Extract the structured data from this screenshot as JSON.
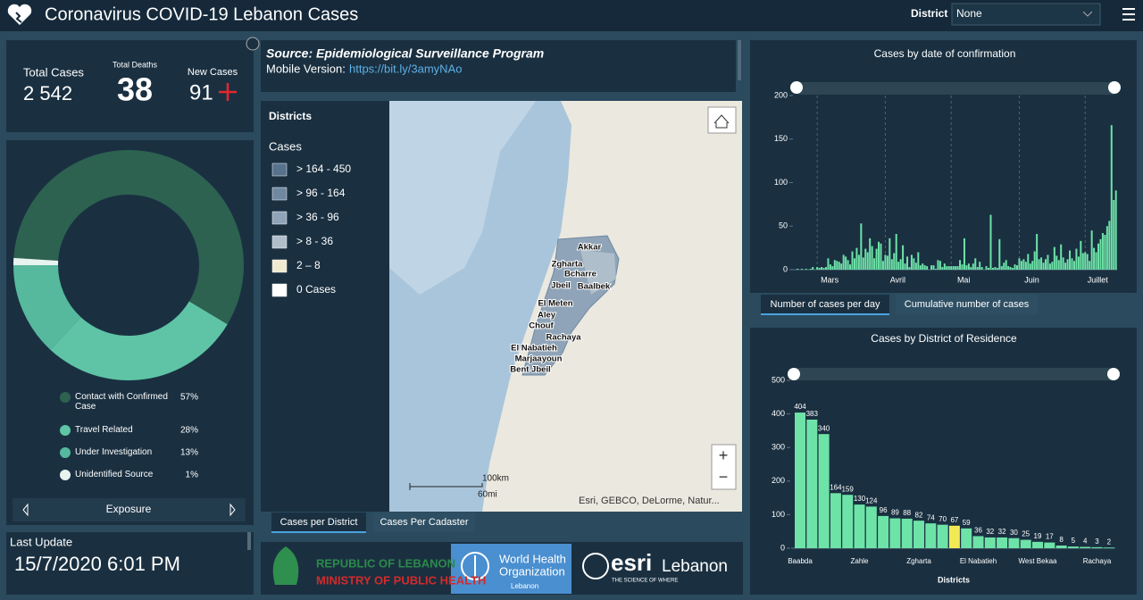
{
  "header": {
    "title": "Coronavirus COVID-19 Lebanon Cases",
    "district_label": "District",
    "district_value": "None"
  },
  "stats": {
    "total_cases_label": "Total Cases",
    "total_cases": "2 542",
    "total_deaths_label": "Total Deaths",
    "total_deaths": "38",
    "new_cases_label": "New Cases",
    "new_cases": "91"
  },
  "last_update": {
    "label": "Last Update",
    "value": "15/7/2020 6:01 PM"
  },
  "source": {
    "title": "Source: Epidemiological Surveillance Program",
    "mobile_label": "Mobile Version:",
    "mobile_link": "https://bit.ly/3amyNAo"
  },
  "map": {
    "legend_title": "Districts",
    "legend_subtitle": "Cases",
    "classes": [
      {
        "label": "> 164 - 450",
        "color": "#56728d"
      },
      {
        "label": "> 96 - 164",
        "color": "#6f89a1"
      },
      {
        "label": "> 36 - 96",
        "color": "#8fa4b8"
      },
      {
        "label": "> 8 - 36",
        "color": "#afbecb"
      },
      {
        "label": "2 – 8",
        "color": "#efe9cf"
      },
      {
        "label": "0 Cases",
        "color": "#ffffff"
      }
    ],
    "district_labels": [
      "Akkar",
      "Zgharta",
      "Bcharre",
      "Jbeil",
      "Baalbek",
      "El Meten",
      "Aley",
      "Chouf",
      "Rachaya",
      "El Nabatieh",
      "Marjaayoun",
      "Bent Jbeil"
    ],
    "scale_km": "100km",
    "scale_mi": "60mi",
    "attribution": "Esri, GEBCO, DeLorme, Natur...",
    "tabs": [
      "Cases per District",
      "Cases Per Cadaster"
    ]
  },
  "logos": {
    "ministry_line1": "REPUBLIC OF LEBANON",
    "ministry_line2": "MINISTRY OF PUBLIC HEALTH",
    "who_line1": "World Health",
    "who_line2": "Organization",
    "who_line3": "Lebanon",
    "esri": "esri",
    "esri_country": "Lebanon",
    "esri_tagline": "THE SCIENCE OF WHERE"
  },
  "daily_tabs": [
    "Number of cases per day",
    "Cumulative number of cases"
  ],
  "chart_data": [
    {
      "type": "pie",
      "title": "Exposure",
      "categories": [
        "Contact with Confirmed Case",
        "Travel Related",
        "Under Investigation",
        "Unidentified Source"
      ],
      "values": [
        57,
        28,
        13,
        1
      ],
      "value_labels": [
        "57%",
        "28%",
        "13%",
        "1%"
      ],
      "colors": [
        "#2d6150",
        "#5ec4a5",
        "#56b99d",
        "#e7f3ef"
      ]
    },
    {
      "type": "bar",
      "title": "Cases by date of confirmation",
      "color": "#6ee3a8",
      "values": [
        1,
        0,
        1,
        0,
        1,
        0,
        1,
        3,
        0,
        3,
        2,
        3,
        2,
        3,
        13,
        6,
        4,
        11,
        10,
        9,
        7,
        17,
        15,
        11,
        6,
        21,
        13,
        25,
        17,
        53,
        14,
        24,
        20,
        36,
        27,
        13,
        24,
        32,
        30,
        10,
        17,
        16,
        36,
        12,
        19,
        41,
        9,
        12,
        28,
        7,
        15,
        3,
        17,
        13,
        8,
        20,
        5,
        7,
        5,
        4,
        0,
        5,
        5,
        1,
        11,
        10,
        3,
        7,
        4,
        4,
        4,
        4,
        4,
        4,
        11,
        6,
        36,
        5,
        7,
        3,
        7,
        13,
        3,
        9,
        3,
        0,
        4,
        2,
        63,
        2,
        3,
        2,
        35,
        4,
        8,
        11,
        4,
        3,
        2,
        6,
        5,
        13,
        10,
        12,
        9,
        18,
        7,
        10,
        21,
        41,
        12,
        14,
        8,
        12,
        17,
        7,
        9,
        26,
        16,
        11,
        29,
        14,
        8,
        12,
        22,
        13,
        10,
        24,
        15,
        33,
        19,
        20,
        18,
        10,
        45,
        25,
        20,
        30,
        35,
        42,
        40,
        50,
        56,
        166,
        80,
        91
      ],
      "xticks": [
        {
          "value": 9,
          "label": "Mars"
        },
        {
          "value": 40,
          "label": "Avril"
        },
        {
          "value": 70,
          "label": "Mai"
        },
        {
          "value": 101,
          "label": "Juin"
        },
        {
          "value": 131,
          "label": "Juillet"
        }
      ],
      "ylim": [
        0,
        200
      ],
      "yticks": [
        0,
        50,
        100,
        150,
        200
      ]
    },
    {
      "type": "bar",
      "title": "Cases by District of Residence",
      "x_label": "Districts",
      "categories": [
        "Baabda",
        null,
        null,
        null,
        null,
        "Zahle",
        null,
        null,
        null,
        null,
        "Zgharta",
        null,
        null,
        null,
        null,
        "El Nabatieh",
        null,
        null,
        null,
        null,
        "West Bekaa",
        null,
        null,
        null,
        null,
        "Rachaya",
        null
      ],
      "values": [
        404,
        383,
        340,
        164,
        159,
        130,
        124,
        96,
        89,
        88,
        82,
        74,
        70,
        67,
        59,
        36,
        32,
        32,
        30,
        25,
        19,
        17,
        8,
        5,
        4,
        3,
        2
      ],
      "colors": [
        "#6ee3a8",
        "#6ee3a8",
        "#6ee3a8",
        "#6ee3a8",
        "#6ee3a8",
        "#6ee3a8",
        "#6ee3a8",
        "#6ee3a8",
        "#6ee3a8",
        "#6ee3a8",
        "#6ee3a8",
        "#6ee3a8",
        "#6ee3a8",
        "#f2ea55",
        "#6ee3a8",
        "#6ee3a8",
        "#6ee3a8",
        "#6ee3a8",
        "#6ee3a8",
        "#6ee3a8",
        "#6ee3a8",
        "#6ee3a8",
        "#6ee3a8",
        "#6ee3a8",
        "#6ee3a8",
        "#6ee3a8",
        "#6ee3a8"
      ],
      "ylim": [
        0,
        500
      ],
      "yticks": [
        0,
        100,
        200,
        300,
        400,
        500
      ]
    }
  ]
}
